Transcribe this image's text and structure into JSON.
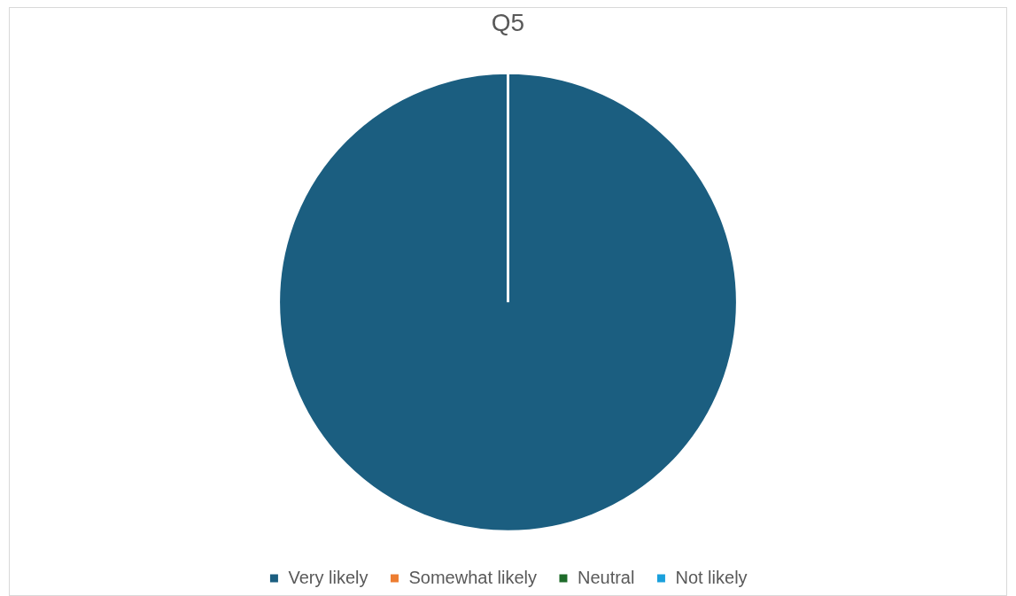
{
  "chart_data": {
    "type": "pie",
    "title": "Q5",
    "categories": [
      "Very likely",
      "Somewhat likely",
      "Neutral",
      "Not likely"
    ],
    "values": [
      100,
      0,
      0,
      0
    ],
    "colors": [
      "#1b5e80",
      "#ed7d31",
      "#1e6b2a",
      "#1aa0dc"
    ],
    "legend": "bottom"
  }
}
